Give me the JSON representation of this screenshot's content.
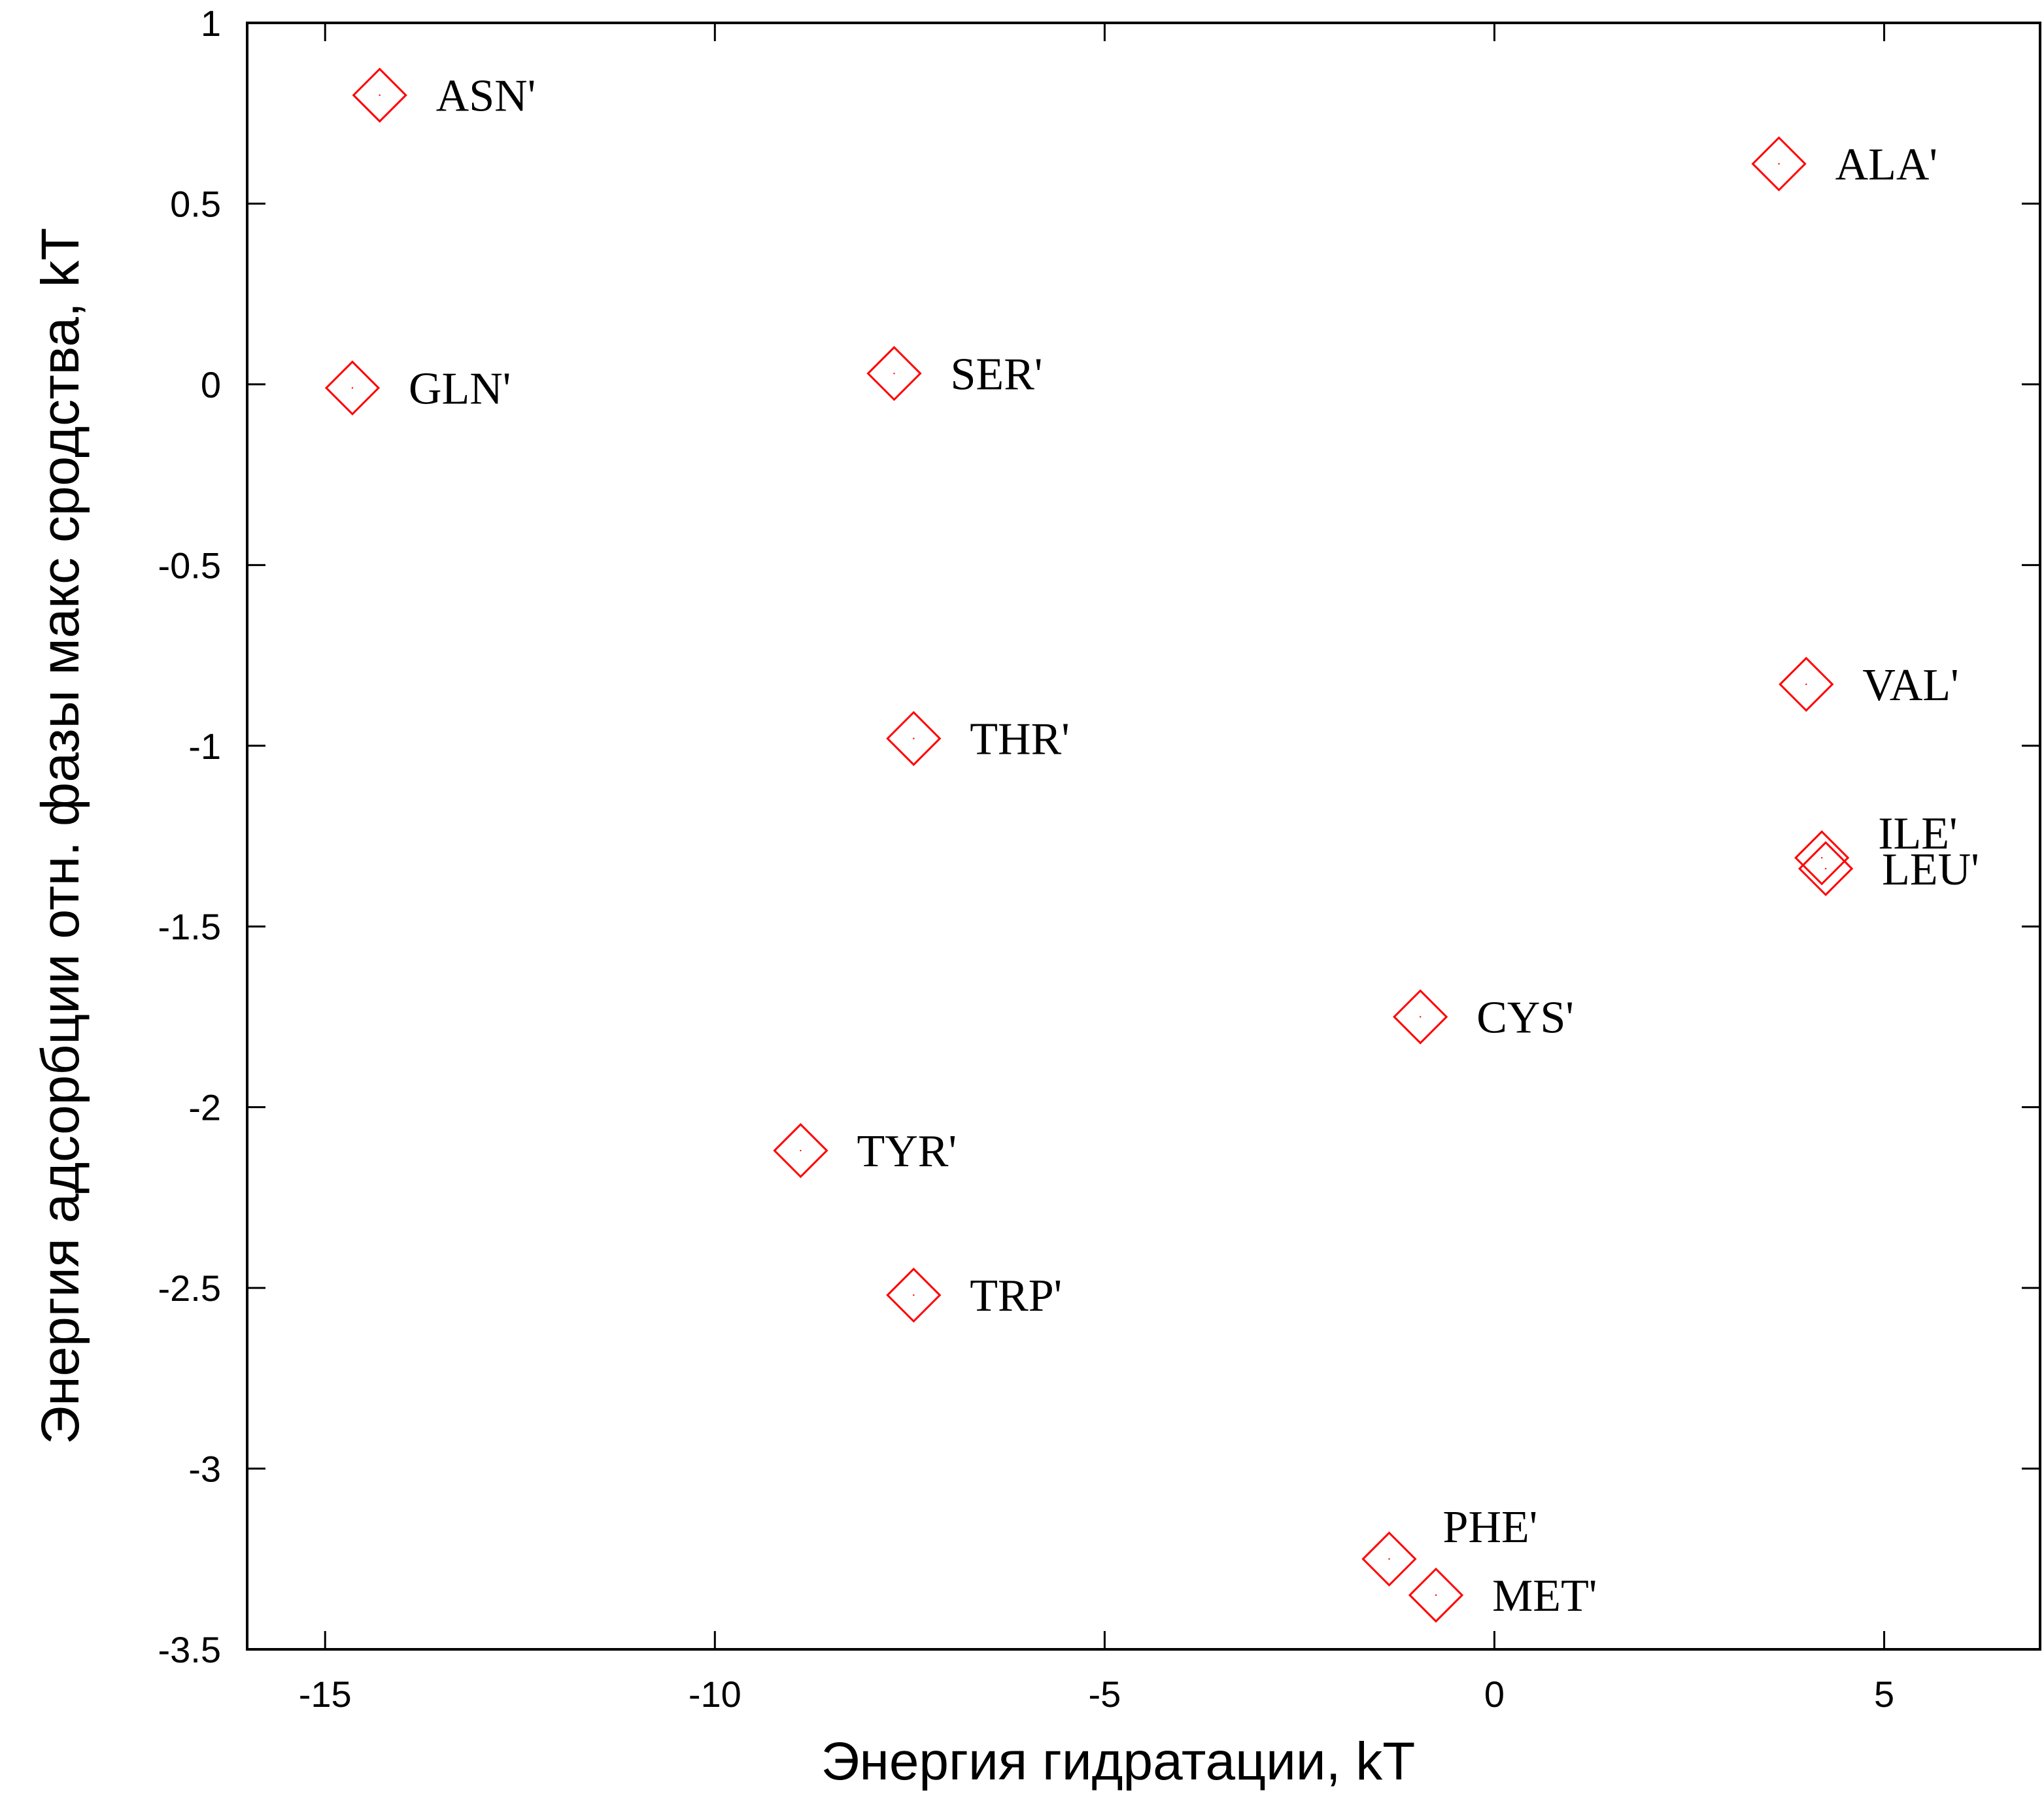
{
  "chart_data": {
    "type": "scatter",
    "xlabel": "Энергия гидратации, kT",
    "ylabel": "Энергия адсорбции отн. фазы макс сродства, kT",
    "xlim": [
      -16,
      7
    ],
    "ylim": [
      -3.5,
      1
    ],
    "xticks": [
      -15,
      -10,
      -5,
      0,
      5
    ],
    "yticks": [
      1,
      0.5,
      0,
      -0.5,
      -1,
      -1.5,
      -2,
      -2.5,
      -3,
      -3.5
    ],
    "xtick_labels": [
      "-15",
      "-10",
      "-5",
      "0",
      "5"
    ],
    "ytick_labels": [
      "1",
      "0.5",
      "0",
      "-0.5",
      "-1",
      "-1.5",
      "-2",
      "-2.5",
      "-3",
      "-3.5"
    ],
    "grid": false,
    "marker": "diamond",
    "marker_color": "#ff0000",
    "points": [
      {
        "label": "ASN'",
        "x": -14.3,
        "y": 0.8
      },
      {
        "label": "ALA'",
        "x": 3.65,
        "y": 0.61
      },
      {
        "label": "GLN'",
        "x": -14.65,
        "y": -0.01
      },
      {
        "label": "SER'",
        "x": -7.7,
        "y": 0.03
      },
      {
        "label": "VAL'",
        "x": 4.0,
        "y": -0.83
      },
      {
        "label": "THR'",
        "x": -7.45,
        "y": -0.98
      },
      {
        "label": "ILE'",
        "x": 4.2,
        "y": -1.31
      },
      {
        "label": "LEU'",
        "x": 4.25,
        "y": -1.34
      },
      {
        "label": "CYS'",
        "x": -0.95,
        "y": -1.75
      },
      {
        "label": "TYR'",
        "x": -8.9,
        "y": -2.12
      },
      {
        "label": "TRP'",
        "x": -7.45,
        "y": -2.52
      },
      {
        "label": "PHE'",
        "x": -1.35,
        "y": -3.25
      },
      {
        "label": "MET'",
        "x": -0.75,
        "y": -3.35
      }
    ]
  }
}
